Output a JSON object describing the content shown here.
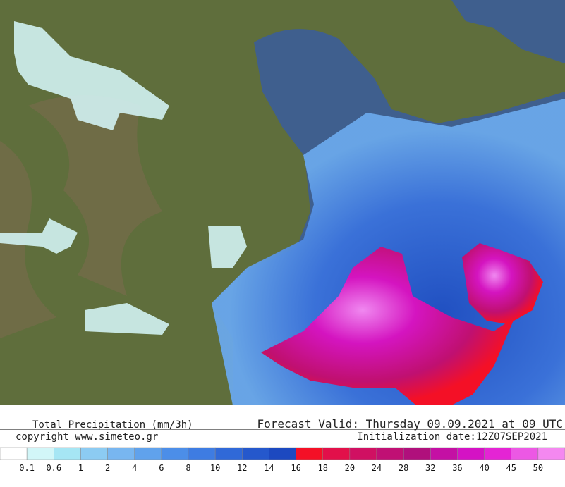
{
  "footer": {
    "product": "Total Precipitation (mm/3h)",
    "valid": "Forecast Valid:  Thursday 09.09.2021 at 09 UTC",
    "copyright": "copyright www.simeteo.gr",
    "init": "Initialization date:12Z07SEP2021"
  },
  "legend": {
    "colors": [
      "#ffffff",
      "#d2f6f8",
      "#a6e6f4",
      "#8ccbf2",
      "#78b6f0",
      "#60a2ec",
      "#4c8ee8",
      "#3e7ce2",
      "#3069d8",
      "#2558cc",
      "#1c49c0",
      "#f41026",
      "#e2104a",
      "#d01062",
      "#c01074",
      "#b0107c",
      "#c410a4",
      "#d412c4",
      "#e424d4",
      "#ec58e4",
      "#f488f0"
    ],
    "labels": [
      "0.1",
      "0.6",
      "1",
      "2",
      "4",
      "6",
      "8",
      "10",
      "12",
      "14",
      "16",
      "18",
      "20",
      "24",
      "28",
      "32",
      "36",
      "40",
      "45",
      "50"
    ]
  }
}
